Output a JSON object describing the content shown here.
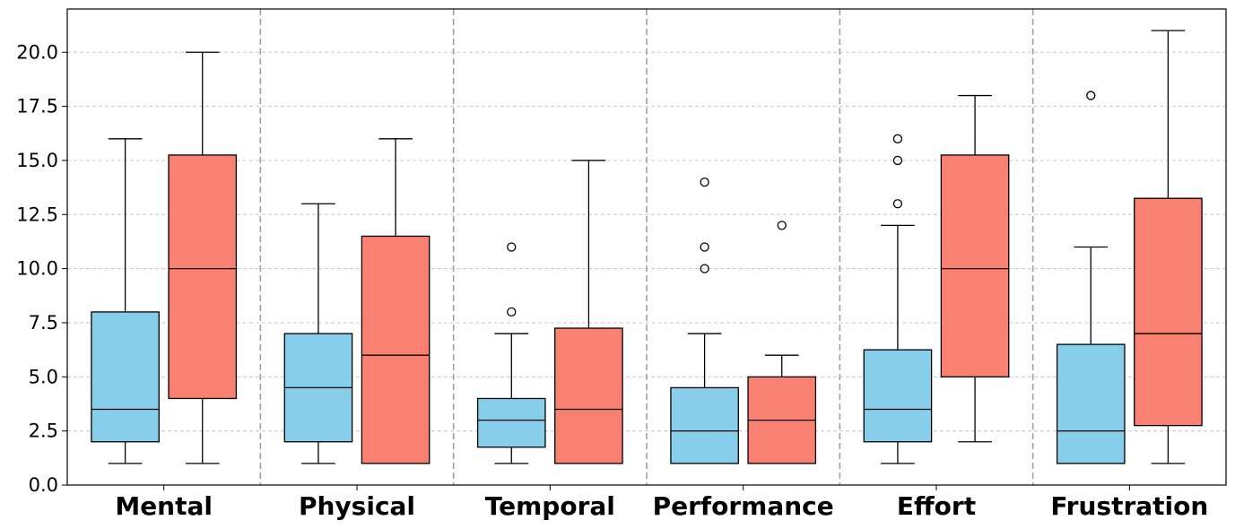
{
  "chart_data": {
    "type": "boxplot",
    "categories": [
      "Mental",
      "Physical",
      "Temporal",
      "Performance",
      "Effort",
      "Frustration"
    ],
    "ylim": [
      0,
      22
    ],
    "yticks": [
      0.0,
      2.5,
      5.0,
      7.5,
      10.0,
      12.5,
      15.0,
      17.5,
      20.0
    ],
    "ytick_labels": [
      "0.0",
      "2.5",
      "5.0",
      "7.5",
      "10.0",
      "12.5",
      "15.0",
      "17.5",
      "20.0"
    ],
    "grid": "horizontal dashed",
    "category_separators": "vertical dashed",
    "series": [
      {
        "color": "#87ceeb",
        "boxes": [
          {
            "whislo": 1,
            "q1": 2,
            "med": 3.5,
            "q3": 8,
            "whishi": 16,
            "fliers": []
          },
          {
            "whislo": 1,
            "q1": 2,
            "med": 4.5,
            "q3": 7,
            "whishi": 13,
            "fliers": []
          },
          {
            "whislo": 1,
            "q1": 1.75,
            "med": 3,
            "q3": 4,
            "whishi": 7,
            "fliers": [
              8,
              11
            ]
          },
          {
            "whislo": 1,
            "q1": 1,
            "med": 2.5,
            "q3": 4.5,
            "whishi": 7,
            "fliers": [
              10,
              11,
              14
            ]
          },
          {
            "whislo": 1,
            "q1": 2,
            "med": 3.5,
            "q3": 6.25,
            "whishi": 12,
            "fliers": [
              13,
              15,
              16
            ]
          },
          {
            "whislo": 1,
            "q1": 1,
            "med": 2.5,
            "q3": 6.5,
            "whishi": 11,
            "fliers": [
              18
            ]
          }
        ]
      },
      {
        "color": "#fa8072",
        "boxes": [
          {
            "whislo": 1,
            "q1": 4,
            "med": 10,
            "q3": 15.25,
            "whishi": 20,
            "fliers": []
          },
          {
            "whislo": 1,
            "q1": 1,
            "med": 6,
            "q3": 11.5,
            "whishi": 16,
            "fliers": []
          },
          {
            "whislo": 1,
            "q1": 1,
            "med": 3.5,
            "q3": 7.25,
            "whishi": 15,
            "fliers": []
          },
          {
            "whislo": 1,
            "q1": 1,
            "med": 3,
            "q3": 5,
            "whishi": 6,
            "fliers": [
              12
            ]
          },
          {
            "whislo": 2,
            "q1": 5,
            "med": 10,
            "q3": 15.25,
            "whishi": 18,
            "fliers": []
          },
          {
            "whislo": 1,
            "q1": 2.75,
            "med": 7,
            "q3": 13.25,
            "whishi": 21,
            "fliers": []
          }
        ]
      }
    ]
  }
}
